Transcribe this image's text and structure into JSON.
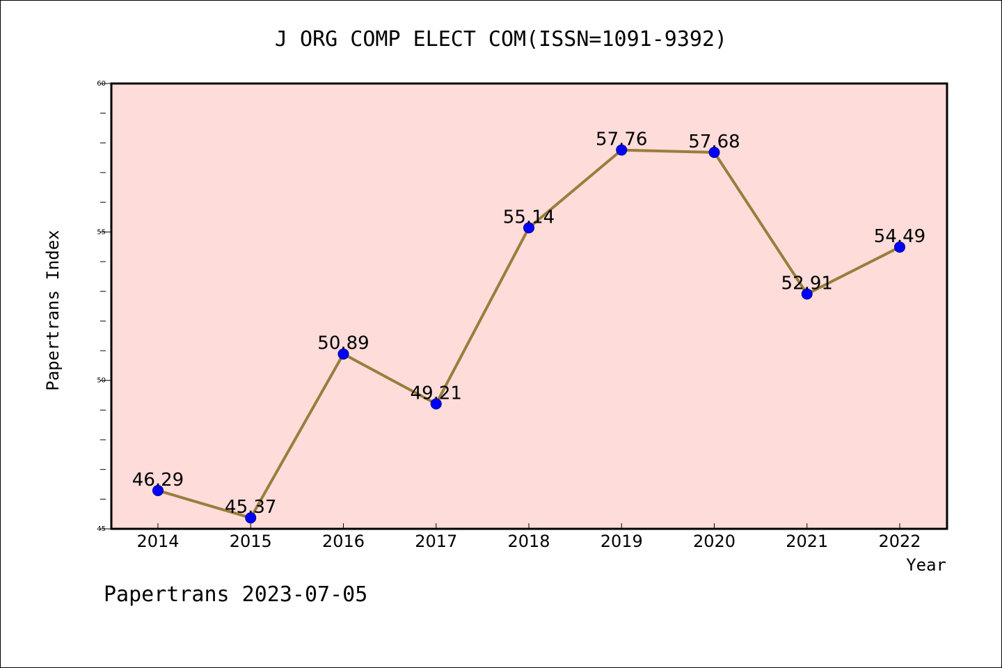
{
  "chart_data": {
    "type": "line",
    "title": "J ORG COMP ELECT COM(ISSN=1091-9392)",
    "xlabel": "Year",
    "ylabel": "Papertrans Index",
    "categories": [
      "2014",
      "2015",
      "2016",
      "2017",
      "2018",
      "2019",
      "2020",
      "2021",
      "2022"
    ],
    "series": [
      {
        "values": [
          46.29,
          45.37,
          50.89,
          49.21,
          55.14,
          57.76,
          57.68,
          52.91,
          54.49
        ],
        "labels": [
          "46.29",
          "45.37",
          "50.89",
          "49.21",
          "55.14",
          "57.76",
          "57.68",
          "52.91",
          "54.49"
        ],
        "line_color": "#9a7d3c",
        "marker_color": "#0000ff"
      }
    ],
    "ylim": [
      45,
      60
    ],
    "yticks": [
      "45",
      "50",
      "55",
      "60"
    ],
    "plot_background": "#fddcda",
    "grid": false,
    "footer": "Papertrans 2023-07-05"
  }
}
